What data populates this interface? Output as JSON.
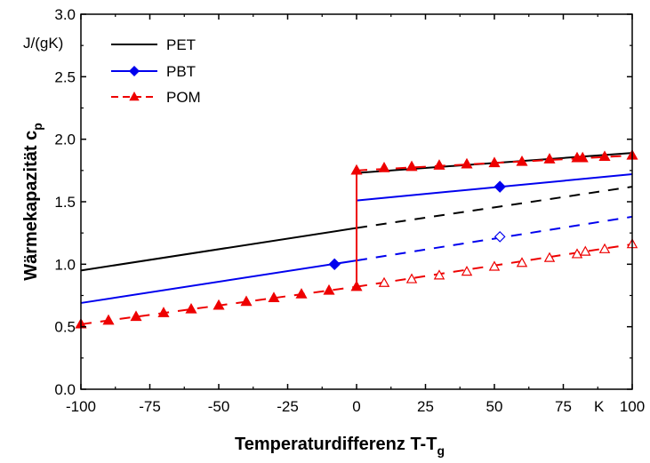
{
  "chart_data": {
    "type": "line",
    "title": "",
    "xlabel": "Temperaturdifferenz T-T",
    "xlabel_sub": "g",
    "ylabel": "Wärmekapazität c",
    "ylabel_sub": "p",
    "yunit": "J/(gK)",
    "xunit": "K",
    "xlim": [
      -100,
      100
    ],
    "ylim": [
      0.0,
      3.0
    ],
    "xticks": [
      -100,
      -75,
      -50,
      -25,
      0,
      25,
      50,
      75,
      100
    ],
    "xtick_labels": [
      "-100",
      "-75",
      "-50",
      "-25",
      "0",
      "25",
      "50",
      "75",
      "100"
    ],
    "yticks": [
      0.0,
      0.5,
      1.0,
      1.5,
      2.0,
      2.5,
      3.0
    ],
    "ytick_labels": [
      "0.0",
      "0.5",
      "1.0",
      "1.5",
      "2.0",
      "2.5",
      "3.0"
    ],
    "grid": false,
    "legend_position": "top-left",
    "series": [
      {
        "name": "PET",
        "color": "#000000",
        "marker": "none",
        "solid_segments": [
          [
            [
              -100,
              0.95
            ],
            [
              0,
              1.29
            ]
          ],
          [
            [
              0,
              1.29
            ],
            [
              0,
              1.73
            ]
          ],
          [
            [
              0,
              1.73
            ],
            [
              100,
              1.89
            ]
          ]
        ],
        "dashed_segments": [
          [
            [
              0,
              1.29
            ],
            [
              100,
              1.62
            ]
          ]
        ],
        "filled_markers": [],
        "open_markers": []
      },
      {
        "name": "PBT",
        "color": "#0000ee",
        "marker": "diamond",
        "solid_segments": [
          [
            [
              -100,
              0.69
            ],
            [
              0,
              1.03
            ]
          ],
          [
            [
              0,
              1.03
            ],
            [
              0,
              1.51
            ]
          ],
          [
            [
              0,
              1.51
            ],
            [
              100,
              1.72
            ]
          ]
        ],
        "dashed_segments": [
          [
            [
              0,
              1.03
            ],
            [
              100,
              1.38
            ]
          ]
        ],
        "filled_markers": [
          [
            -8,
            1.0
          ],
          [
            52,
            1.62
          ]
        ],
        "open_markers": [
          [
            52,
            1.22
          ]
        ]
      },
      {
        "name": "POM",
        "color": "#ee0000",
        "marker": "triangle",
        "dashed_segments": [
          [
            [
              -100,
              0.52
            ],
            [
              0,
              0.82
            ]
          ],
          [
            [
              0,
              0.82
            ],
            [
              100,
              1.16
            ]
          ],
          [
            [
              0,
              1.75
            ],
            [
              100,
              1.87
            ]
          ]
        ],
        "solid_segments": [
          [
            [
              0,
              0.82
            ],
            [
              0,
              1.75
            ]
          ]
        ],
        "filled_markers": [
          [
            -100,
            0.52
          ],
          [
            -90,
            0.55
          ],
          [
            -80,
            0.58
          ],
          [
            -70,
            0.61
          ],
          [
            -60,
            0.64
          ],
          [
            -50,
            0.67
          ],
          [
            -40,
            0.7
          ],
          [
            -30,
            0.73
          ],
          [
            -20,
            0.76
          ],
          [
            -10,
            0.79
          ],
          [
            0,
            0.82
          ],
          [
            0,
            1.75
          ],
          [
            10,
            1.77
          ],
          [
            20,
            1.78
          ],
          [
            30,
            1.79
          ],
          [
            40,
            1.8
          ],
          [
            50,
            1.81
          ],
          [
            60,
            1.82
          ],
          [
            70,
            1.84
          ],
          [
            80,
            1.85
          ],
          [
            82,
            1.85
          ],
          [
            90,
            1.86
          ],
          [
            100,
            1.87
          ]
        ],
        "open_markers": [
          [
            10,
            0.85
          ],
          [
            20,
            0.88
          ],
          [
            30,
            0.91
          ],
          [
            40,
            0.94
          ],
          [
            50,
            0.98
          ],
          [
            60,
            1.01
          ],
          [
            70,
            1.05
          ],
          [
            80,
            1.08
          ],
          [
            83,
            1.1
          ],
          [
            90,
            1.12
          ],
          [
            100,
            1.16
          ]
        ]
      }
    ]
  }
}
